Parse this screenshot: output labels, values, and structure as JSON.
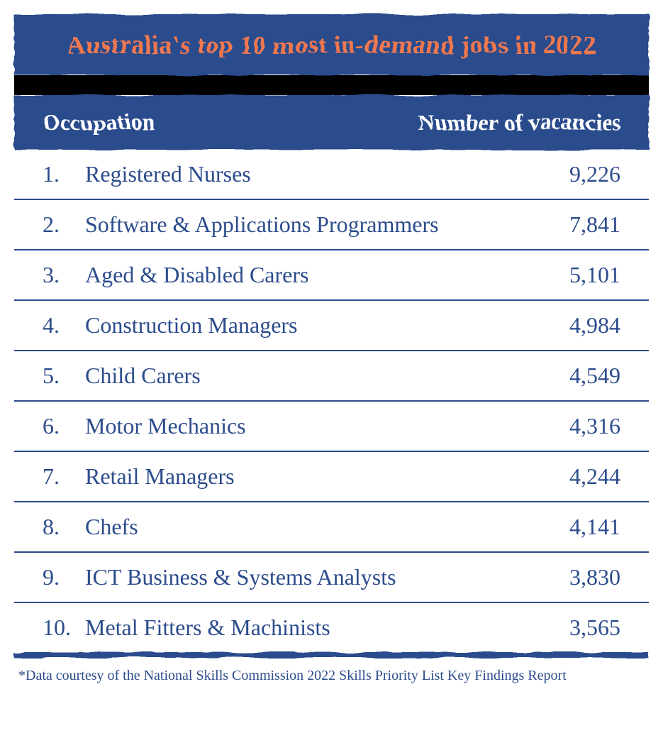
{
  "title": "Australia's top 10 most in-demand jobs in 2022",
  "columns": {
    "occupation": "Occupation",
    "vacancies": "Number of vacancies"
  },
  "rows": [
    {
      "rank": "1.",
      "occupation": "Registered Nurses",
      "vacancies": "9,226"
    },
    {
      "rank": "2.",
      "occupation": "Software & Applications Programmers",
      "vacancies": "7,841"
    },
    {
      "rank": "3.",
      "occupation": "Aged & Disabled Carers",
      "vacancies": "5,101"
    },
    {
      "rank": "4.",
      "occupation": "Construction Managers",
      "vacancies": "4,984"
    },
    {
      "rank": "5.",
      "occupation": "Child Carers",
      "vacancies": "4,549"
    },
    {
      "rank": "6.",
      "occupation": "Motor Mechanics",
      "vacancies": "4,316"
    },
    {
      "rank": "7.",
      "occupation": "Retail Managers",
      "vacancies": "4,244"
    },
    {
      "rank": "8.",
      "occupation": "Chefs",
      "vacancies": "4,141"
    },
    {
      "rank": "9.",
      "occupation": "ICT Business & Systems Analysts",
      "vacancies": "3,830"
    },
    {
      "rank": "10.",
      "occupation": "Metal Fitters & Machinists",
      "vacancies": "3,565"
    }
  ],
  "footnote": "*Data courtesy of the National Skills Commission 2022 Skills Priority List Key Findings Report",
  "styling": {
    "title_bg": "#2c4c8c",
    "title_color": "#f07850",
    "title_fontsize": 36,
    "header_bg": "#2c4c8c",
    "header_color": "#ffffff",
    "header_fontsize": 32,
    "row_color": "#2c4c8c",
    "row_fontsize": 32,
    "row_border_color": "#2c4c8c",
    "gap_color": "#000000",
    "footnote_color": "#2c4c8c",
    "footnote_fontsize": 20,
    "background": "#ffffff",
    "type": "table"
  }
}
